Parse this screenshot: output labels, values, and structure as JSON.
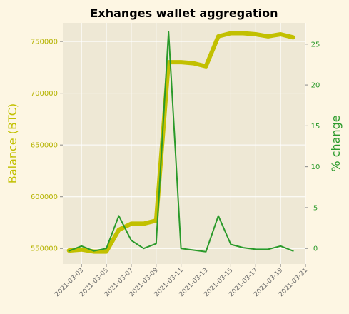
{
  "chart_data": {
    "type": "line",
    "title": "Exhanges wallet aggregation",
    "xlabel": "",
    "dates": [
      "2021-03-02",
      "2021-03-03",
      "2021-03-04",
      "2021-03-05",
      "2021-03-06",
      "2021-03-07",
      "2021-03-08",
      "2021-03-09",
      "2021-03-10",
      "2021-03-11",
      "2021-03-12",
      "2021-03-13",
      "2021-03-14",
      "2021-03-15",
      "2021-03-16",
      "2021-03-17",
      "2021-03-18",
      "2021-03-19",
      "2021-03-20"
    ],
    "x_ticks": [
      "2021-03-03",
      "2021-03-05",
      "2021-03-07",
      "2021-03-09",
      "2021-03-11",
      "2021-03-13",
      "2021-03-15",
      "2021-03-17",
      "2021-03-19",
      "2021-03-21"
    ],
    "xlim": [
      "2021-03-01T12:00",
      "2021-03-21"
    ],
    "left_axis": {
      "label": "Balance (BTC)",
      "ylim": [
        535000,
        768000
      ],
      "ticks": [
        550000,
        600000,
        650000,
        700000,
        750000
      ],
      "color": "#c2c000"
    },
    "right_axis": {
      "label": "% change",
      "ylim": [
        -1.9,
        27.6
      ],
      "ticks": [
        0,
        5,
        10,
        15,
        20,
        25
      ],
      "color": "#2a9a2a"
    },
    "series": [
      {
        "axis": "left",
        "color": "#c2c000",
        "values": [
          548000,
          549000,
          547000,
          547000,
          568000,
          574000,
          574000,
          577000,
          730000,
          730000,
          729000,
          726000,
          755000,
          758000,
          758000,
          757000,
          755000,
          757000,
          754000
        ]
      },
      {
        "axis": "right",
        "color": "#2a9a2a",
        "values": [
          -0.3,
          0.3,
          -0.3,
          0.0,
          4.0,
          1.0,
          0.0,
          0.6,
          26.5,
          0.0,
          -0.2,
          -0.4,
          4.0,
          0.5,
          0.1,
          -0.1,
          -0.1,
          0.3,
          -0.3
        ]
      }
    ],
    "grid": true,
    "legend": "none"
  }
}
